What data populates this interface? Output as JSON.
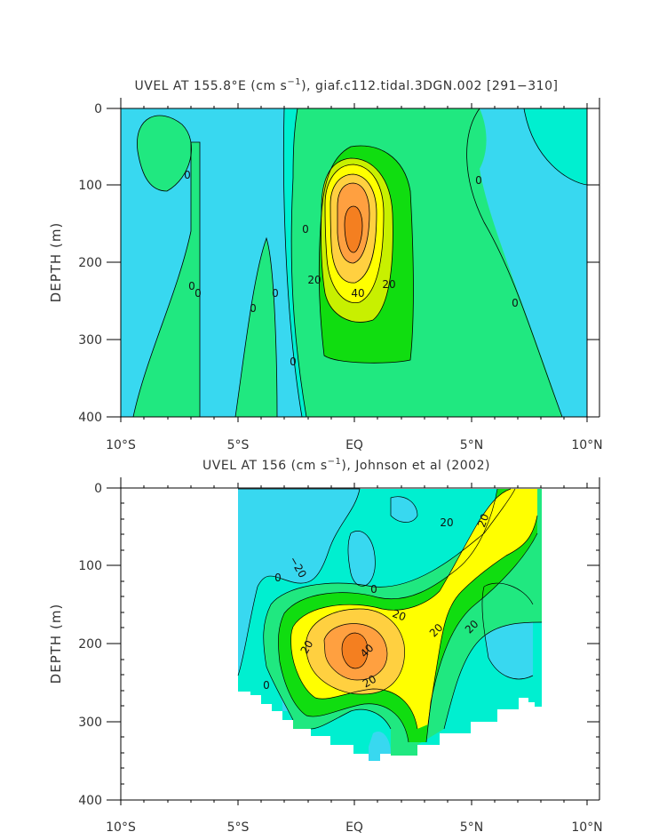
{
  "chart_data": [
    {
      "type": "contour",
      "title": "UVEL AT 155.8°E (cm s$^{-1}$), giaf.c112.tidal.3DGN.002 [291-310]",
      "title_parts": [
        "UVEL AT 155.8°E (cm s",
        "−1",
        "), giaf.c112.tidal.3DGN.002 [291−310]"
      ],
      "ylabel": "DEPTH (m)",
      "xlim": [
        -10,
        10
      ],
      "ylim": [
        400,
        0
      ],
      "x_tick_labels": [
        "10°S",
        "5°S",
        "EQ",
        "5°N",
        "10°N"
      ],
      "y_tick_labels": [
        "0",
        "100",
        "200",
        "300",
        "400"
      ],
      "contour_labels": [
        "0",
        "0",
        "0",
        "0",
        "0",
        "0",
        "0",
        "0",
        "0",
        "20",
        "40",
        "20"
      ],
      "core": {
        "lat": 0,
        "depth": 175,
        "max_speed": 70
      }
    },
    {
      "type": "contour",
      "title": "UVEL AT 156 (cm s$^{-1}$), Johnson et al (2002)",
      "title_parts": [
        "UVEL AT 156 (cm s",
        "−1",
        "), Johnson et al (2002)"
      ],
      "ylabel": "DEPTH (m)",
      "xlim": [
        -10,
        10
      ],
      "ylim": [
        400,
        0
      ],
      "x_tick_labels": [
        "10°S",
        "5°S",
        "EQ",
        "5°N",
        "10°N"
      ],
      "y_tick_labels": [
        "0",
        "100",
        "200",
        "300",
        "400"
      ],
      "contour_labels": [
        "−20",
        "0",
        "0",
        "20",
        "20",
        "20",
        "20",
        "20",
        "40",
        "20",
        "0",
        "20"
      ],
      "core": {
        "lat": -0.3,
        "depth": 200,
        "max_speed": 60
      }
    }
  ],
  "colors": {
    "neg": "#38d8f0",
    "c0": "#00efd0",
    "c10": "#20e880",
    "c20": "#10dd10",
    "c30": "#c8f000",
    "c40": "#ffff00",
    "c50": "#ffd040",
    "c60": "#ffa040",
    "c70": "#f47f20"
  }
}
